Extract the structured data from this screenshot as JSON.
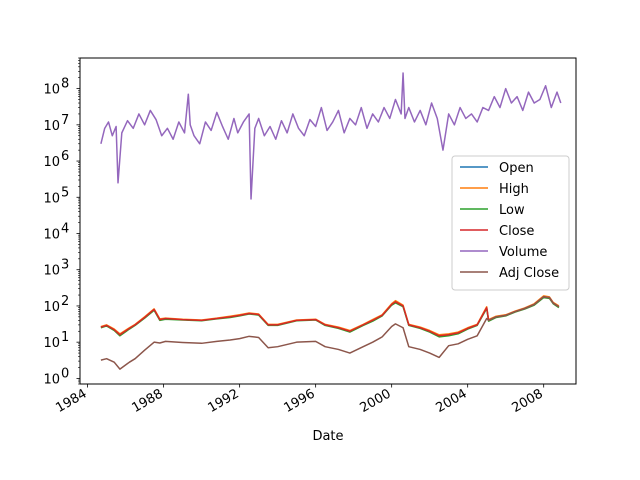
{
  "chart_data": {
    "type": "line",
    "title": "",
    "xlabel": "Date",
    "ylabel": "",
    "yscale": "log",
    "ylim": [
      0.7,
      700000000.0
    ],
    "xlim": [
      1983.6,
      2009.7
    ],
    "grid": false,
    "legend_position": "center-right",
    "x_ticks": [
      "1984",
      "1988",
      "1992",
      "1996",
      "2000",
      "2004",
      "2008"
    ],
    "y_ticks": [
      {
        "base": "10",
        "exp": "0"
      },
      {
        "base": "10",
        "exp": "1"
      },
      {
        "base": "10",
        "exp": "2"
      },
      {
        "base": "10",
        "exp": "3"
      },
      {
        "base": "10",
        "exp": "4"
      },
      {
        "base": "10",
        "exp": "5"
      },
      {
        "base": "10",
        "exp": "6"
      },
      {
        "base": "10",
        "exp": "7"
      },
      {
        "base": "10",
        "exp": "8"
      }
    ],
    "series": [
      {
        "name": "Open",
        "color": "#1f77b4",
        "x": [
          1984.7,
          1985.0,
          1985.4,
          1985.7,
          1986.2,
          1986.5,
          1987.0,
          1987.5,
          1987.8,
          1988.1,
          1989.0,
          1990.0,
          1990.8,
          1991.5,
          1992.0,
          1992.5,
          1993.0,
          1993.5,
          1994.0,
          1995.0,
          1996.0,
          1996.5,
          1997.2,
          1997.8,
          1998.5,
          1999.0,
          1999.5,
          2000.0,
          2000.2,
          2000.6,
          2000.9,
          2001.5,
          2002.0,
          2002.5,
          2003.0,
          2003.5,
          2004.0,
          2004.5,
          2005.0,
          2005.1,
          2005.5,
          2006.0,
          2006.5,
          2007.0,
          2007.5,
          2008.0,
          2008.3,
          2008.5,
          2008.8
        ],
        "y": [
          26,
          29,
          22,
          16,
          24,
          30,
          48,
          80,
          42,
          45,
          42,
          40,
          45,
          50,
          55,
          62,
          58,
          30,
          30,
          40,
          42,
          30,
          25,
          20,
          30,
          40,
          55,
          110,
          130,
          100,
          30,
          25,
          20,
          15,
          16,
          18,
          24,
          30,
          90,
          40,
          50,
          55,
          70,
          85,
          110,
          180,
          170,
          120,
          95
        ]
      },
      {
        "name": "High",
        "color": "#ff7f0e",
        "x": [
          1984.7,
          1985.0,
          1985.4,
          1985.7,
          1986.2,
          1986.5,
          1987.0,
          1987.5,
          1987.8,
          1988.1,
          1989.0,
          1990.0,
          1990.8,
          1991.5,
          1992.0,
          1992.5,
          1993.0,
          1993.5,
          1994.0,
          1995.0,
          1996.0,
          1996.5,
          1997.2,
          1997.8,
          1998.5,
          1999.0,
          1999.5,
          2000.0,
          2000.2,
          2000.6,
          2000.9,
          2001.5,
          2002.0,
          2002.5,
          2003.0,
          2003.5,
          2004.0,
          2004.5,
          2005.0,
          2005.1,
          2005.5,
          2006.0,
          2006.5,
          2007.0,
          2007.5,
          2008.0,
          2008.3,
          2008.5,
          2008.8
        ],
        "y": [
          27,
          30,
          23,
          17,
          25,
          31,
          50,
          83,
          44,
          46,
          43,
          41,
          46,
          52,
          57,
          64,
          60,
          31,
          31,
          41,
          43,
          31,
          26,
          21,
          31,
          42,
          57,
          115,
          140,
          105,
          31,
          26,
          21,
          16,
          17,
          19,
          25,
          31,
          95,
          42,
          52,
          57,
          72,
          88,
          115,
          190,
          178,
          125,
          100
        ]
      },
      {
        "name": "Low",
        "color": "#2ca02c",
        "x": [
          1984.7,
          1985.0,
          1985.4,
          1985.7,
          1986.2,
          1986.5,
          1987.0,
          1987.5,
          1987.8,
          1988.1,
          1989.0,
          1990.0,
          1990.8,
          1991.5,
          1992.0,
          1992.5,
          1993.0,
          1993.5,
          1994.0,
          1995.0,
          1996.0,
          1996.5,
          1997.2,
          1997.8,
          1998.5,
          1999.0,
          1999.5,
          2000.0,
          2000.2,
          2000.6,
          2000.9,
          2001.5,
          2002.0,
          2002.5,
          2003.0,
          2003.5,
          2004.0,
          2004.5,
          2005.0,
          2005.1,
          2005.5,
          2006.0,
          2006.5,
          2007.0,
          2007.5,
          2008.0,
          2008.3,
          2008.5,
          2008.8
        ],
        "y": [
          25,
          28,
          21,
          15,
          23,
          29,
          46,
          76,
          40,
          43,
          41,
          39,
          44,
          48,
          53,
          60,
          56,
          29,
          29,
          39,
          41,
          29,
          24,
          19,
          29,
          38,
          53,
          105,
          122,
          95,
          29,
          24,
          19,
          14,
          15,
          17,
          23,
          29,
          85,
          38,
          48,
          53,
          68,
          82,
          105,
          170,
          162,
          115,
          90
        ]
      },
      {
        "name": "Close",
        "color": "#d62728",
        "x": [
          1984.7,
          1985.0,
          1985.4,
          1985.7,
          1986.2,
          1986.5,
          1987.0,
          1987.5,
          1987.8,
          1988.1,
          1989.0,
          1990.0,
          1990.8,
          1991.5,
          1992.0,
          1992.5,
          1993.0,
          1993.5,
          1994.0,
          1995.0,
          1996.0,
          1996.5,
          1997.2,
          1997.8,
          1998.5,
          1999.0,
          1999.5,
          2000.0,
          2000.2,
          2000.6,
          2000.9,
          2001.5,
          2002.0,
          2002.5,
          2003.0,
          2003.5,
          2004.0,
          2004.5,
          2005.0,
          2005.1,
          2005.5,
          2006.0,
          2006.5,
          2007.0,
          2007.5,
          2008.0,
          2008.3,
          2008.5,
          2008.8
        ],
        "y": [
          26,
          29,
          22,
          16,
          24,
          30,
          48,
          80,
          42,
          45,
          42,
          40,
          45,
          50,
          55,
          62,
          58,
          30,
          30,
          40,
          42,
          30,
          25,
          20,
          30,
          40,
          55,
          110,
          130,
          100,
          30,
          25,
          20,
          15,
          16,
          18,
          24,
          30,
          90,
          40,
          50,
          55,
          70,
          85,
          110,
          180,
          170,
          120,
          95
        ]
      },
      {
        "name": "Volume",
        "color": "#9467bd",
        "x": [
          1984.7,
          1984.9,
          1985.1,
          1985.3,
          1985.5,
          1985.6,
          1985.8,
          1986.1,
          1986.4,
          1986.7,
          1987.0,
          1987.3,
          1987.6,
          1987.9,
          1988.2,
          1988.5,
          1988.8,
          1989.1,
          1989.3,
          1989.4,
          1989.6,
          1989.9,
          1990.2,
          1990.5,
          1990.8,
          1991.1,
          1991.4,
          1991.7,
          1991.9,
          1992.2,
          1992.5,
          1992.6,
          1992.8,
          1993.0,
          1993.3,
          1993.6,
          1993.9,
          1994.2,
          1994.5,
          1994.8,
          1995.1,
          1995.4,
          1995.7,
          1996.0,
          1996.3,
          1996.6,
          1996.9,
          1997.2,
          1997.5,
          1997.8,
          1998.1,
          1998.4,
          1998.7,
          1999.0,
          1999.3,
          1999.6,
          1999.9,
          2000.2,
          2000.5,
          2000.6,
          2000.7,
          2000.9,
          2001.2,
          2001.5,
          2001.8,
          2002.1,
          2002.4,
          2002.7,
          2003.0,
          2003.3,
          2003.6,
          2003.9,
          2004.2,
          2004.5,
          2004.8,
          2005.1,
          2005.4,
          2005.7,
          2006.0,
          2006.3,
          2006.6,
          2006.9,
          2007.2,
          2007.5,
          2007.8,
          2008.1,
          2008.4,
          2008.7,
          2008.9
        ],
        "y": [
          3000000.0,
          8000000.0,
          12000000.0,
          5000000.0,
          9000000.0,
          250000.0,
          6000000.0,
          13000000.0,
          8000000.0,
          20000000.0,
          10000000.0,
          25000000.0,
          14000000.0,
          5000000.0,
          8000000.0,
          4000000.0,
          12000000.0,
          6000000.0,
          70000000.0,
          10000000.0,
          5000000.0,
          3000000.0,
          12000000.0,
          7000000.0,
          22000000.0,
          9000000.0,
          4000000.0,
          15000000.0,
          6000000.0,
          12000000.0,
          20000000.0,
          90000.0,
          8000000.0,
          15000000.0,
          5000000.0,
          9000000.0,
          4000000.0,
          13000000.0,
          6000000.0,
          20000000.0,
          8000000.0,
          5000000.0,
          14000000.0,
          9000000.0,
          30000000.0,
          7000000.0,
          12000000.0,
          25000000.0,
          6000000.0,
          15000000.0,
          10000000.0,
          30000000.0,
          8000000.0,
          20000000.0,
          12000000.0,
          30000000.0,
          15000000.0,
          50000000.0,
          20000000.0,
          270000000.0,
          15000000.0,
          30000000.0,
          12000000.0,
          25000000.0,
          10000000.0,
          40000000.0,
          15000000.0,
          2000000.0,
          20000000.0,
          10000000.0,
          30000000.0,
          15000000.0,
          20000000.0,
          12000000.0,
          30000000.0,
          25000000.0,
          60000000.0,
          30000000.0,
          100000000.0,
          40000000.0,
          60000000.0,
          25000000.0,
          80000000.0,
          40000000.0,
          50000000.0,
          120000000.0,
          30000000.0,
          80000000.0,
          40000000.0
        ]
      },
      {
        "name": "Adj Close",
        "color": "#8c564b",
        "x": [
          1984.7,
          1985.0,
          1985.4,
          1985.7,
          1986.2,
          1986.5,
          1987.0,
          1987.5,
          1987.8,
          1988.1,
          1989.0,
          1990.0,
          1990.8,
          1991.5,
          1992.0,
          1992.5,
          1993.0,
          1993.5,
          1994.0,
          1995.0,
          1996.0,
          1996.5,
          1997.2,
          1997.8,
          1998.5,
          1999.0,
          1999.5,
          2000.0,
          2000.2,
          2000.6,
          2000.9,
          2001.5,
          2002.0,
          2002.5,
          2003.0,
          2003.5,
          2004.0,
          2004.5,
          2005.0,
          2005.1,
          2005.5,
          2006.0,
          2006.5,
          2007.0,
          2007.5,
          2008.0,
          2008.3,
          2008.5,
          2008.8
        ],
        "y": [
          3.2,
          3.5,
          2.8,
          1.8,
          2.8,
          3.5,
          6,
          10,
          9.5,
          10.5,
          9.8,
          9.3,
          10.5,
          11.5,
          12.5,
          14.5,
          13.5,
          7,
          7.5,
          10,
          10.5,
          7.5,
          6.3,
          5,
          7.5,
          10,
          14,
          27,
          32,
          25,
          7.5,
          6.3,
          5,
          3.8,
          8,
          9,
          12,
          15,
          45,
          40,
          50,
          55,
          70,
          85,
          110,
          180,
          170,
          120,
          95
        ]
      }
    ]
  }
}
